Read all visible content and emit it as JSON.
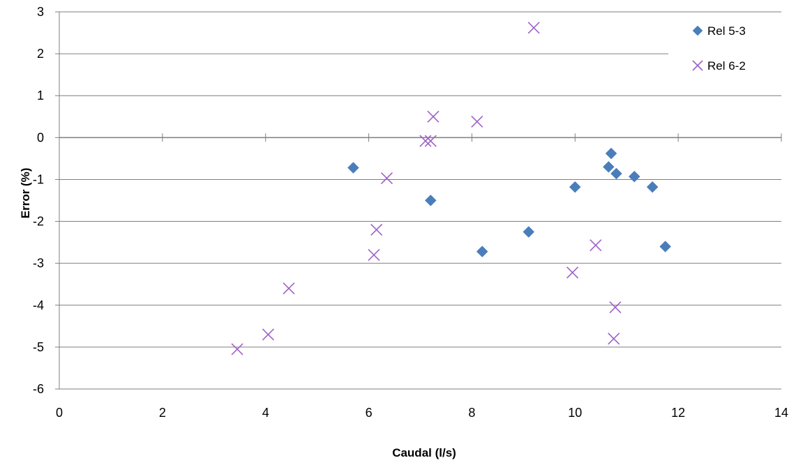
{
  "chart_data": {
    "type": "scatter",
    "title": "",
    "xlabel": "Caudal (l/s)",
    "ylabel": "Error (%)",
    "xlim": [
      0,
      14
    ],
    "ylim": [
      -6,
      3
    ],
    "xticks": [
      "0",
      "2",
      "4",
      "6",
      "8",
      "10",
      "12",
      "14"
    ],
    "yticks": [
      "3",
      "2",
      "1",
      "0",
      "-1",
      "-2",
      "-3",
      "-4",
      "-5",
      "-6"
    ],
    "grid": "horizontal",
    "legend_position": "top-right",
    "series": [
      {
        "name": "Rel 5-3",
        "marker": "diamond",
        "color": "#4a7ebb",
        "points": [
          [
            5.7,
            -0.72
          ],
          [
            7.2,
            -1.5
          ],
          [
            8.2,
            -2.72
          ],
          [
            9.1,
            -2.25
          ],
          [
            10.0,
            -1.18
          ],
          [
            10.65,
            -0.7
          ],
          [
            10.7,
            -0.38
          ],
          [
            10.8,
            -0.86
          ],
          [
            11.15,
            -0.93
          ],
          [
            11.5,
            -1.18
          ],
          [
            11.75,
            -2.6
          ]
        ]
      },
      {
        "name": "Rel 6-2",
        "marker": "x",
        "color": "#9d62c6",
        "points": [
          [
            3.45,
            -5.05
          ],
          [
            4.05,
            -4.7
          ],
          [
            4.45,
            -3.6
          ],
          [
            6.1,
            -2.8
          ],
          [
            6.15,
            -2.2
          ],
          [
            6.35,
            -0.97
          ],
          [
            7.1,
            -0.08
          ],
          [
            7.2,
            -0.08
          ],
          [
            7.25,
            0.5
          ],
          [
            8.1,
            0.38
          ],
          [
            9.2,
            2.62
          ],
          [
            9.95,
            -3.22
          ],
          [
            10.4,
            -2.57
          ],
          [
            10.75,
            -4.8
          ],
          [
            10.78,
            -4.05
          ]
        ]
      }
    ]
  }
}
